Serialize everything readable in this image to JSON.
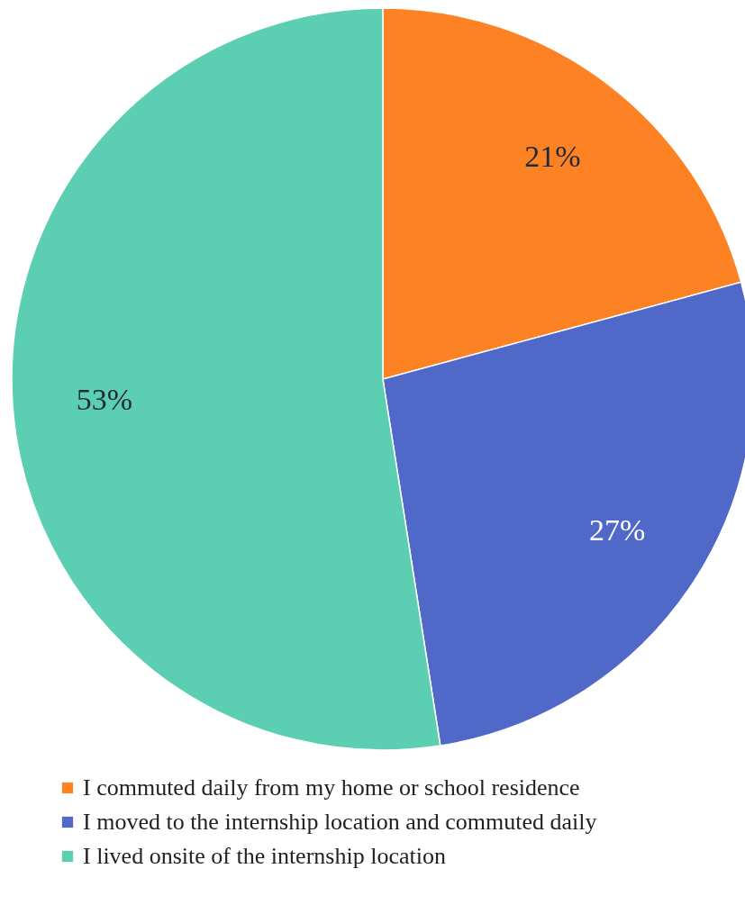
{
  "chart_data": {
    "type": "pie",
    "categories": [
      "I commuted daily from my home or school residence",
      "I moved to the internship location and commuted daily",
      "I lived onsite of the internship location"
    ],
    "values": [
      21,
      27,
      53
    ],
    "value_labels": [
      "21%",
      "27%",
      "53%"
    ],
    "colors": [
      "#fd8224",
      "#5068c8",
      "#5ccfb2"
    ],
    "legend": "bottom"
  }
}
